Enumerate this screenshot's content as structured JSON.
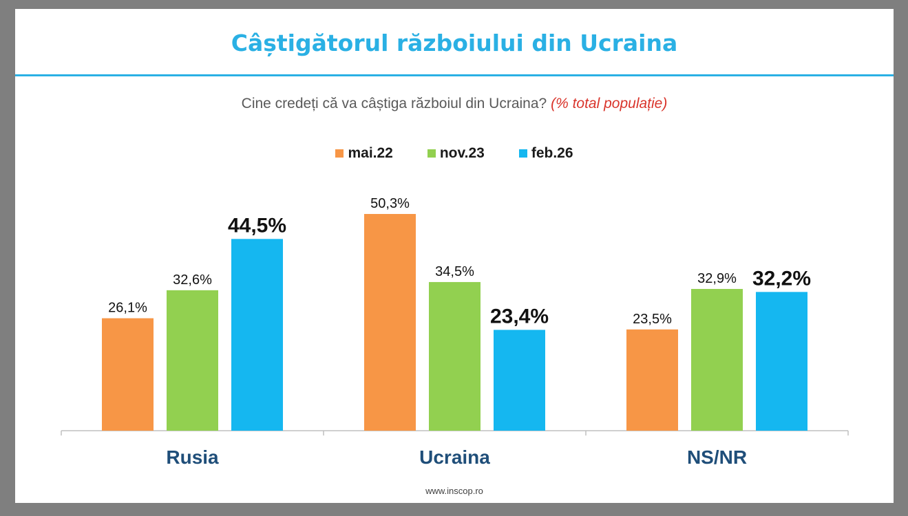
{
  "chart_data": {
    "type": "bar",
    "title": "Câștigătorul războiului din Ucraina",
    "subtitle": "Cine credeți că va câștiga războiul din Ucraina?",
    "subtitle_note": "(% total populație)",
    "categories": [
      "Rusia",
      "Ucraina",
      "NS/NR"
    ],
    "series": [
      {
        "name": "mai.22",
        "color": "#f79646",
        "values": [
          26.1,
          50.3,
          23.5
        ],
        "labels": [
          "26,1%",
          "50,3%",
          "23,5%"
        ]
      },
      {
        "name": "nov.23",
        "color": "#92d050",
        "values": [
          32.6,
          34.5,
          32.9
        ],
        "labels": [
          "32,6%",
          "34,5%",
          "32,9%"
        ]
      },
      {
        "name": "feb.26",
        "color": "#15b7f0",
        "values": [
          44.5,
          23.4,
          32.2
        ],
        "labels": [
          "44,5%",
          "23,4%",
          "32,2%"
        ]
      }
    ],
    "emphasized_series": "feb.26",
    "ylim": [
      0,
      56
    ],
    "legend_position": "top-center",
    "grid": false
  },
  "footer": "www.inscop.ro"
}
